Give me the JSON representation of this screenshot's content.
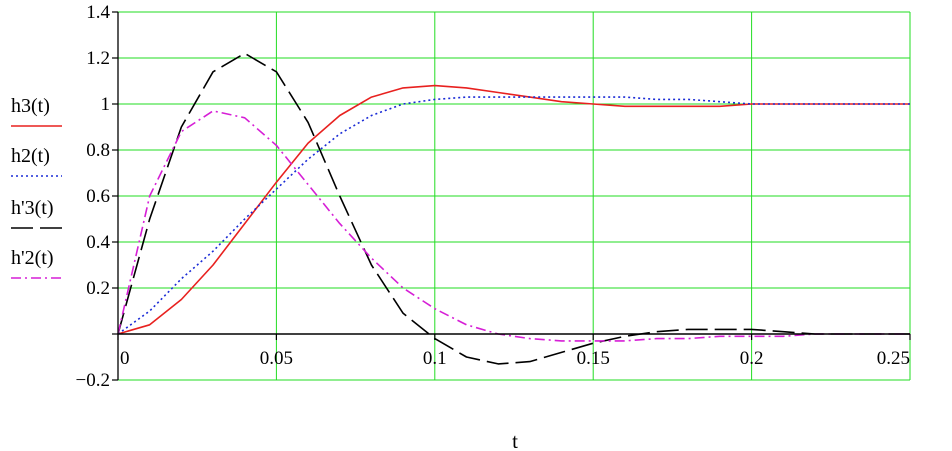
{
  "chart_data": {
    "type": "line",
    "title": "",
    "xlabel": "t",
    "ylabel": "",
    "xlim": [
      0,
      0.25
    ],
    "ylim": [
      -0.2,
      1.4
    ],
    "grid": true,
    "legend_position": "left",
    "x_ticks": [
      "0",
      "0.05",
      "0.1",
      "0.15",
      "0.2",
      "0.25"
    ],
    "x_tick_values": [
      0,
      0.05,
      0.1,
      0.15,
      0.2,
      0.25
    ],
    "y_ticks": [
      "−0.2",
      "",
      "0.2",
      "0.4",
      "0.6",
      "0.8",
      "1",
      "1.2",
      "1.4"
    ],
    "y_tick_values": [
      -0.2,
      0,
      0.2,
      0.4,
      0.6,
      0.8,
      1,
      1.2,
      1.4
    ],
    "x": [
      0,
      0.01,
      0.02,
      0.03,
      0.04,
      0.05,
      0.06,
      0.07,
      0.08,
      0.09,
      0.1,
      0.11,
      0.12,
      0.13,
      0.14,
      0.15,
      0.16,
      0.17,
      0.18,
      0.19,
      0.2,
      0.21,
      0.22,
      0.23,
      0.24,
      0.25
    ],
    "series": [
      {
        "name": "h3(t)",
        "color": "#e8211f",
        "dash": "solid",
        "values": [
          0,
          0.04,
          0.15,
          0.3,
          0.48,
          0.66,
          0.83,
          0.95,
          1.03,
          1.07,
          1.08,
          1.07,
          1.05,
          1.03,
          1.01,
          1.0,
          0.99,
          0.99,
          0.99,
          0.99,
          1.0,
          1.0,
          1.0,
          1.0,
          1.0,
          1.0
        ]
      },
      {
        "name": "h2(t)",
        "color": "#1a2bd6",
        "dash": "dotted",
        "values": [
          0,
          0.1,
          0.24,
          0.36,
          0.5,
          0.63,
          0.76,
          0.87,
          0.95,
          1.0,
          1.02,
          1.03,
          1.03,
          1.03,
          1.03,
          1.03,
          1.03,
          1.02,
          1.02,
          1.01,
          1.0,
          1.0,
          1.0,
          1.0,
          1.0,
          1.0
        ]
      },
      {
        "name": "h'3(t)",
        "color": "#000000",
        "dash": "long-dash",
        "values": [
          0,
          0.5,
          0.9,
          1.14,
          1.22,
          1.14,
          0.92,
          0.6,
          0.3,
          0.09,
          -0.02,
          -0.1,
          -0.13,
          -0.12,
          -0.08,
          -0.04,
          -0.01,
          0.01,
          0.02,
          0.02,
          0.02,
          0.01,
          0.0,
          0.0,
          0.0,
          0.0
        ]
      },
      {
        "name": "h'2(t)",
        "color": "#d61fd6",
        "dash": "dash-dot",
        "values": [
          0,
          0.6,
          0.88,
          0.97,
          0.94,
          0.82,
          0.65,
          0.48,
          0.33,
          0.2,
          0.11,
          0.04,
          0.0,
          -0.02,
          -0.03,
          -0.03,
          -0.03,
          -0.02,
          -0.02,
          -0.01,
          -0.01,
          -0.01,
          0.0,
          0.0,
          0.0,
          0.0
        ]
      }
    ]
  }
}
